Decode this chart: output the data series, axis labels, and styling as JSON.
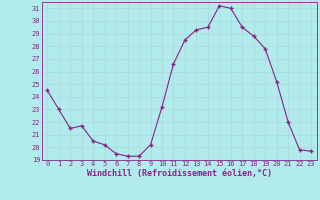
{
  "x": [
    0,
    1,
    2,
    3,
    4,
    5,
    6,
    7,
    8,
    9,
    10,
    11,
    12,
    13,
    14,
    15,
    16,
    17,
    18,
    19,
    20,
    21,
    22,
    23
  ],
  "y": [
    24.5,
    23.0,
    21.5,
    21.7,
    20.5,
    20.2,
    19.5,
    19.3,
    19.3,
    20.2,
    23.2,
    26.6,
    28.5,
    29.3,
    29.5,
    31.2,
    31.0,
    29.5,
    28.8,
    27.8,
    25.2,
    22.0,
    19.8,
    19.7
  ],
  "line_color": "#882288",
  "marker": "+",
  "marker_color": "#882288",
  "bg_color": "#b2ebeb",
  "grid_color": "#aadddd",
  "xlabel": "Windchill (Refroidissement éolien,°C)",
  "xlabel_color": "#882288",
  "tick_color": "#882288",
  "spine_color": "#882288",
  "ylim": [
    19,
    31.5
  ],
  "xlim": [
    -0.5,
    23.5
  ],
  "yticks": [
    19,
    20,
    21,
    22,
    23,
    24,
    25,
    26,
    27,
    28,
    29,
    30,
    31
  ],
  "xticks": [
    0,
    1,
    2,
    3,
    4,
    5,
    6,
    7,
    8,
    9,
    10,
    11,
    12,
    13,
    14,
    15,
    16,
    17,
    18,
    19,
    20,
    21,
    22,
    23
  ],
  "tick_fontsize": 5.0,
  "xlabel_fontsize": 6.0
}
